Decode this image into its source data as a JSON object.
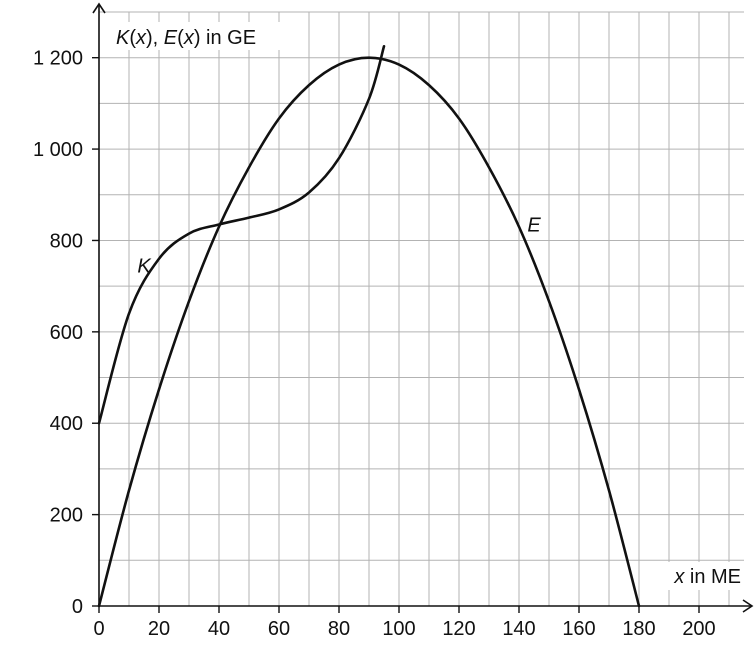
{
  "chart_data": {
    "type": "line",
    "y_axis_title": {
      "parts": [
        {
          "text": "K",
          "italic": true
        },
        {
          "text": "(",
          "italic": false
        },
        {
          "text": "x",
          "italic": true
        },
        {
          "text": "), ",
          "italic": false
        },
        {
          "text": "E",
          "italic": true
        },
        {
          "text": "(",
          "italic": false
        },
        {
          "text": "x",
          "italic": true
        },
        {
          "text": ") in GE",
          "italic": false
        }
      ]
    },
    "x_axis_title": {
      "parts": [
        {
          "text": "x",
          "italic": true
        },
        {
          "text": " in ME",
          "italic": false
        }
      ]
    },
    "xlim": [
      0,
      215
    ],
    "ylim": [
      0,
      1300
    ],
    "x_ticks": [
      0,
      20,
      40,
      60,
      80,
      100,
      120,
      140,
      160,
      180,
      200
    ],
    "x_tick_labels": [
      "0",
      "20",
      "40",
      "60",
      "80",
      "100",
      "120",
      "140",
      "160",
      "180",
      "200"
    ],
    "y_ticks": [
      0,
      200,
      400,
      600,
      800,
      1000,
      1200
    ],
    "y_tick_labels": [
      "0",
      "200",
      "400",
      "600",
      "800",
      "1 000",
      "1 200"
    ],
    "grid": {
      "x_step": 10,
      "y_step": 100
    },
    "series": [
      {
        "name": "K",
        "x": [
          0,
          10,
          20,
          30,
          40,
          50,
          60,
          70,
          80,
          90,
          95
        ],
        "y": [
          400,
          640,
          760,
          815,
          835,
          850,
          868,
          905,
          980,
          1110,
          1225
        ]
      },
      {
        "name": "E",
        "x": [
          0,
          10,
          20,
          30,
          40,
          50,
          60,
          70,
          80,
          90,
          100,
          110,
          120,
          130,
          140,
          150,
          160,
          170,
          180
        ],
        "y": [
          0,
          253,
          474,
          667,
          830,
          960,
          1067,
          1140,
          1185,
          1200,
          1185,
          1140,
          1067,
          960,
          830,
          667,
          474,
          253,
          0
        ]
      }
    ],
    "series_label_positions": {
      "K": [
        15,
        745
      ],
      "E": [
        145,
        835
      ]
    }
  }
}
